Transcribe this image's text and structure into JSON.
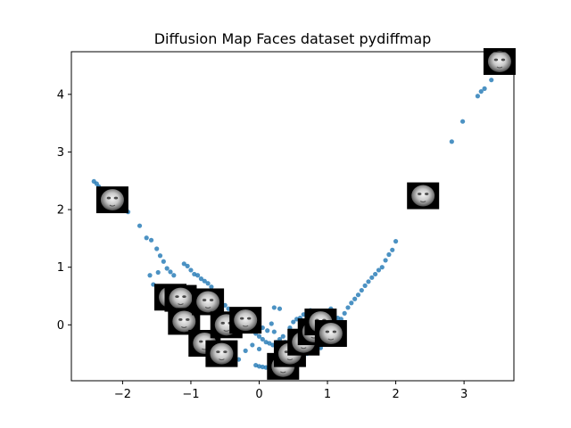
{
  "chart_data": {
    "type": "scatter",
    "title": "Diffusion Map Faces dataset pydiffmap",
    "xlabel": "",
    "ylabel": "",
    "xlim": [
      -2.75,
      3.73
    ],
    "ylim": [
      -0.97,
      4.74
    ],
    "xticks": [
      "−2",
      "−1",
      "0",
      "1",
      "2",
      "3"
    ],
    "xtick_values": [
      -2,
      -1,
      0,
      1,
      2,
      3
    ],
    "yticks": [
      "0",
      "1",
      "2",
      "3",
      "4"
    ],
    "ytick_values": [
      0,
      1,
      2,
      3,
      4
    ],
    "grid": false,
    "marker_color": "#1f77b4",
    "series": [
      {
        "points": [
          [
            -2.42,
            2.49
          ],
          [
            -2.38,
            2.45
          ],
          [
            -2.35,
            2.4
          ],
          [
            -2.3,
            2.33
          ],
          [
            -2.25,
            2.27
          ],
          [
            -2.2,
            2.2
          ],
          [
            -2.15,
            2.14
          ],
          [
            -2.1,
            2.08
          ],
          [
            -2.05,
            2.03
          ],
          [
            -2.0,
            2.0
          ],
          [
            -1.92,
            1.96
          ],
          [
            -1.75,
            1.72
          ],
          [
            -1.65,
            1.51
          ],
          [
            -1.58,
            1.47
          ],
          [
            -1.5,
            1.32
          ],
          [
            -1.45,
            1.2
          ],
          [
            -1.4,
            1.1
          ],
          [
            -1.35,
            0.98
          ],
          [
            -1.3,
            0.92
          ],
          [
            -1.25,
            0.86
          ],
          [
            -1.1,
            1.06
          ],
          [
            -1.05,
            1.02
          ],
          [
            -1.0,
            0.95
          ],
          [
            -0.95,
            0.88
          ],
          [
            -0.9,
            0.86
          ],
          [
            -0.85,
            0.8
          ],
          [
            -0.8,
            0.76
          ],
          [
            -0.75,
            0.72
          ],
          [
            -0.7,
            0.66
          ],
          [
            -0.65,
            0.58
          ],
          [
            -1.55,
            0.7
          ],
          [
            -1.45,
            0.64
          ],
          [
            -1.35,
            0.58
          ],
          [
            -1.6,
            0.86
          ],
          [
            -1.48,
            0.91
          ],
          [
            -0.6,
            0.48
          ],
          [
            -0.55,
            0.4
          ],
          [
            -0.5,
            0.34
          ],
          [
            -0.45,
            0.28
          ],
          [
            -0.4,
            0.22
          ],
          [
            -0.35,
            0.16
          ],
          [
            -0.3,
            0.1
          ],
          [
            -0.25,
            0.05
          ],
          [
            -0.2,
            0.0
          ],
          [
            -0.15,
            -0.05
          ],
          [
            -0.1,
            -0.1
          ],
          [
            -0.05,
            -0.15
          ],
          [
            0.0,
            -0.2
          ],
          [
            0.05,
            -0.25
          ],
          [
            0.1,
            -0.3
          ],
          [
            0.15,
            -0.32
          ],
          [
            0.2,
            -0.35
          ],
          [
            0.25,
            -0.3
          ],
          [
            0.3,
            -0.25
          ],
          [
            0.35,
            -0.2
          ],
          [
            0.12,
            -0.1
          ],
          [
            0.05,
            -0.05
          ],
          [
            -0.02,
            0.05
          ],
          [
            0.18,
            0.02
          ],
          [
            0.22,
            -0.12
          ],
          [
            0.28,
            -0.4
          ],
          [
            0.32,
            -0.45
          ],
          [
            0.38,
            -0.3
          ],
          [
            0.42,
            -0.38
          ],
          [
            0.0,
            -0.42
          ],
          [
            -0.05,
            -0.7
          ],
          [
            0.0,
            -0.72
          ],
          [
            0.05,
            -0.73
          ],
          [
            0.1,
            -0.74
          ],
          [
            0.15,
            -0.72
          ],
          [
            0.22,
            0.3
          ],
          [
            0.3,
            0.28
          ],
          [
            0.45,
            -0.05
          ],
          [
            0.5,
            0.05
          ],
          [
            0.55,
            0.1
          ],
          [
            0.6,
            0.12
          ],
          [
            0.65,
            0.18
          ],
          [
            0.7,
            0.22
          ],
          [
            0.75,
            0.25
          ],
          [
            0.8,
            0.2
          ],
          [
            0.85,
            0.15
          ],
          [
            0.9,
            0.12
          ],
          [
            0.95,
            0.18
          ],
          [
            1.0,
            0.22
          ],
          [
            1.05,
            0.28
          ],
          [
            1.1,
            0.18
          ],
          [
            1.15,
            0.12
          ],
          [
            1.2,
            0.1
          ],
          [
            1.25,
            0.2
          ],
          [
            1.3,
            0.3
          ],
          [
            1.35,
            0.38
          ],
          [
            1.4,
            0.45
          ],
          [
            1.45,
            0.52
          ],
          [
            1.5,
            0.6
          ],
          [
            1.55,
            0.68
          ],
          [
            1.6,
            0.75
          ],
          [
            1.65,
            0.82
          ],
          [
            1.7,
            0.88
          ],
          [
            1.75,
            0.95
          ],
          [
            1.8,
            1.0
          ],
          [
            1.85,
            1.12
          ],
          [
            1.9,
            1.22
          ],
          [
            1.95,
            1.3
          ],
          [
            2.0,
            1.45
          ],
          [
            2.25,
            2.28
          ],
          [
            2.35,
            2.34
          ],
          [
            2.45,
            2.4
          ],
          [
            2.82,
            3.18
          ],
          [
            2.98,
            3.53
          ],
          [
            3.2,
            3.97
          ],
          [
            3.25,
            4.05
          ],
          [
            3.3,
            4.1
          ],
          [
            3.4,
            4.25
          ],
          [
            3.45,
            4.4
          ],
          [
            3.52,
            4.5
          ],
          [
            3.58,
            4.6
          ],
          [
            -0.9,
            -0.1
          ],
          [
            -0.7,
            -0.3
          ],
          [
            -0.5,
            -0.45
          ],
          [
            -0.3,
            -0.6
          ],
          [
            -0.2,
            -0.45
          ],
          [
            -0.1,
            -0.35
          ],
          [
            0.6,
            -0.3
          ],
          [
            0.8,
            -0.2
          ],
          [
            1.0,
            -0.1
          ],
          [
            1.2,
            -0.05
          ],
          [
            0.9,
            -0.4
          ],
          [
            0.7,
            -0.5
          ]
        ]
      }
    ],
    "thumbnails": [
      {
        "x": -2.15,
        "y": 2.17
      },
      {
        "x": -1.3,
        "y": 0.48
      },
      {
        "x": -1.15,
        "y": 0.46
      },
      {
        "x": -1.1,
        "y": 0.06
      },
      {
        "x": -0.75,
        "y": 0.4
      },
      {
        "x": -0.8,
        "y": -0.32
      },
      {
        "x": -0.55,
        "y": -0.5
      },
      {
        "x": -0.48,
        "y": 0.0
      },
      {
        "x": -0.2,
        "y": 0.08
      },
      {
        "x": 0.35,
        "y": -0.72
      },
      {
        "x": 0.45,
        "y": -0.5
      },
      {
        "x": 0.65,
        "y": -0.3
      },
      {
        "x": 0.8,
        "y": -0.12
      },
      {
        "x": 0.9,
        "y": 0.05
      },
      {
        "x": 1.05,
        "y": -0.15
      },
      {
        "x": 2.4,
        "y": 2.24
      },
      {
        "x": 3.52,
        "y": 4.57
      }
    ]
  }
}
